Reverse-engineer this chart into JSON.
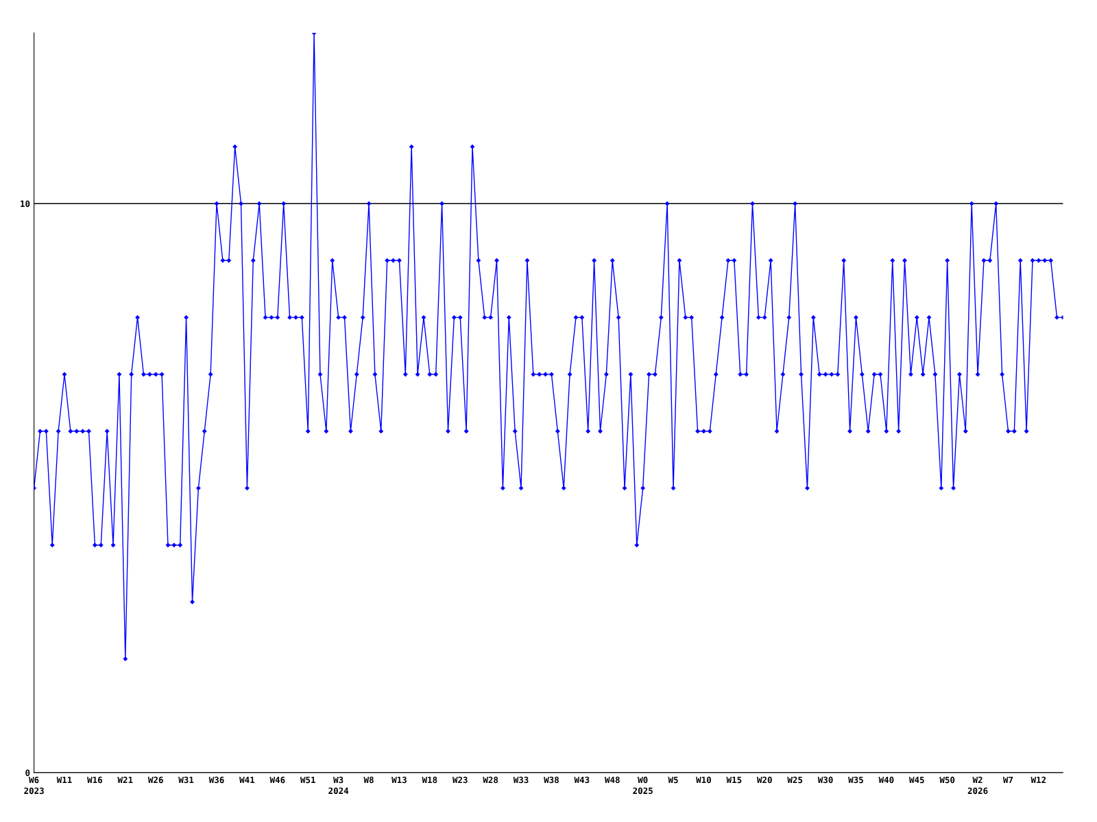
{
  "chart_data": {
    "type": "line",
    "categories": [
      "W6\n2023",
      null,
      null,
      null,
      null,
      "W11",
      null,
      null,
      null,
      null,
      "W16",
      null,
      null,
      null,
      null,
      "W21",
      null,
      null,
      null,
      null,
      "W26",
      null,
      null,
      null,
      null,
      "W31",
      null,
      null,
      null,
      null,
      "W36",
      null,
      null,
      null,
      null,
      "W41",
      null,
      null,
      null,
      null,
      "W46",
      null,
      null,
      null,
      null,
      "W51",
      null,
      null,
      null,
      null,
      "W3\n2024",
      null,
      null,
      null,
      null,
      "W8",
      null,
      null,
      null,
      null,
      "W13",
      null,
      null,
      null,
      null,
      "W18",
      null,
      null,
      null,
      null,
      "W23",
      null,
      null,
      null,
      null,
      "W28",
      null,
      null,
      null,
      null,
      "W33",
      null,
      null,
      null,
      null,
      "W38",
      null,
      null,
      null,
      null,
      "W43",
      null,
      null,
      null,
      null,
      "W48",
      null,
      null,
      null,
      null,
      "W0\n2025",
      null,
      null,
      null,
      null,
      "W5",
      null,
      null,
      null,
      null,
      "W10",
      null,
      null,
      null,
      null,
      "W15",
      null,
      null,
      null,
      null,
      "W20",
      null,
      null,
      null,
      null,
      "W25",
      null,
      null,
      null,
      null,
      "W30",
      null,
      null,
      null,
      null,
      "W35",
      null,
      null,
      null,
      null,
      "W40",
      null,
      null,
      null,
      null,
      "W45",
      null,
      null,
      null,
      null,
      "W50",
      null,
      null,
      null,
      null,
      "W2\n2026",
      null,
      null,
      null,
      null,
      "W7",
      null,
      null,
      null,
      null,
      "W12",
      null,
      null,
      null,
      null
    ],
    "series": [
      {
        "color": "#0000ff",
        "values": [
          5,
          6,
          6,
          4,
          6,
          7,
          6,
          6,
          6,
          6,
          4,
          4,
          6,
          4,
          7,
          2,
          7,
          8,
          7,
          7,
          7,
          7,
          4,
          4,
          4,
          8,
          3,
          5,
          6,
          7,
          10,
          9,
          9,
          11,
          10,
          5,
          9,
          10,
          8,
          8,
          8,
          10,
          8,
          8,
          8,
          6,
          13,
          7,
          6,
          9,
          8,
          8,
          6,
          7,
          8,
          10,
          7,
          6,
          9,
          9,
          9,
          7,
          11,
          7,
          8,
          7,
          7,
          10,
          6,
          8,
          8,
          6,
          11,
          9,
          8,
          8,
          9,
          5,
          8,
          6,
          5,
          9,
          7,
          7,
          7,
          7,
          6,
          5,
          7,
          8,
          8,
          6,
          9,
          6,
          7,
          9,
          8,
          5,
          7,
          4,
          5,
          7,
          7,
          8,
          10,
          5,
          9,
          8,
          8,
          6,
          6,
          6,
          7,
          8,
          9,
          9,
          7,
          7,
          10,
          8,
          8,
          9,
          6,
          7,
          8,
          10,
          7,
          5,
          8,
          7,
          7,
          7,
          7,
          9,
          6,
          8,
          7,
          6,
          7,
          7,
          6,
          9,
          6,
          9,
          7,
          8,
          7,
          8,
          7,
          5,
          9,
          5,
          7,
          6,
          10,
          7,
          9,
          9,
          10,
          7,
          6,
          6,
          9,
          6,
          9,
          9,
          9,
          9,
          8,
          8
        ]
      }
    ],
    "ylim": [
      0,
      13
    ],
    "yticks": [
      0,
      10
    ],
    "grid": "y",
    "marker": "diamond",
    "line_style": "solid"
  }
}
